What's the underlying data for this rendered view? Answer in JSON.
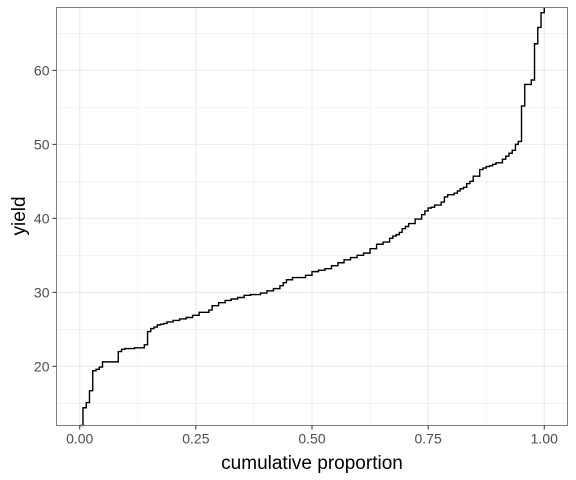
{
  "chart_data": {
    "type": "line",
    "subtype": "empirical-cdf-step",
    "title": "",
    "xlabel": "cumulative proportion",
    "ylabel": "yield",
    "xlim": [
      -0.05,
      1.05
    ],
    "ylim": [
      12,
      68.5
    ],
    "x_ticks": [
      0.0,
      0.25,
      0.5,
      0.75,
      1.0
    ],
    "x_tick_labels": [
      "0.00",
      "0.25",
      "0.50",
      "0.75",
      "1.00"
    ],
    "y_ticks": [
      20,
      30,
      40,
      50,
      60
    ],
    "y_tick_labels": [
      "20",
      "30",
      "40",
      "50",
      "60"
    ],
    "grid": true,
    "legend": "none",
    "colors": {
      "line": "#000000",
      "grid": "#ebebeb",
      "panel_border": "#7f7f7f"
    },
    "series": [
      {
        "x": [
          0.0,
          0.007,
          0.014,
          0.021,
          0.028,
          0.035,
          0.042,
          0.049,
          0.076,
          0.083,
          0.09,
          0.097,
          0.118,
          0.139,
          0.146,
          0.153,
          0.16,
          0.167,
          0.174,
          0.181,
          0.188,
          0.201,
          0.215,
          0.229,
          0.243,
          0.257,
          0.278,
          0.285,
          0.299,
          0.313,
          0.326,
          0.34,
          0.354,
          0.368,
          0.389,
          0.403,
          0.417,
          0.431,
          0.438,
          0.445,
          0.458,
          0.486,
          0.5,
          0.514,
          0.528,
          0.542,
          0.556,
          0.569,
          0.583,
          0.597,
          0.611,
          0.625,
          0.639,
          0.653,
          0.667,
          0.674,
          0.681,
          0.688,
          0.694,
          0.701,
          0.708,
          0.722,
          0.736,
          0.743,
          0.75,
          0.757,
          0.764,
          0.778,
          0.785,
          0.792,
          0.806,
          0.813,
          0.819,
          0.826,
          0.833,
          0.84,
          0.847,
          0.861,
          0.868,
          0.875,
          0.882,
          0.889,
          0.896,
          0.91,
          0.917,
          0.924,
          0.931,
          0.938,
          0.944,
          0.951,
          0.958,
          0.965,
          0.972,
          0.979,
          0.986,
          0.993,
          1.0
        ],
        "values": [
          12.0,
          14.4,
          15.1,
          16.7,
          19.4,
          19.6,
          19.9,
          20.6,
          20.6,
          22.0,
          22.3,
          22.4,
          22.5,
          22.9,
          24.7,
          25.1,
          25.3,
          25.6,
          25.7,
          25.8,
          26.0,
          26.2,
          26.4,
          26.6,
          26.9,
          27.3,
          27.6,
          28.2,
          28.6,
          28.9,
          29.1,
          29.3,
          29.6,
          29.7,
          29.9,
          30.2,
          30.5,
          30.9,
          31.3,
          31.7,
          32.0,
          32.3,
          32.8,
          33.0,
          33.2,
          33.6,
          34.0,
          34.4,
          34.7,
          35.0,
          35.3,
          35.9,
          36.5,
          36.8,
          37.3,
          37.6,
          37.8,
          38.1,
          38.6,
          38.9,
          39.3,
          39.9,
          40.5,
          41.0,
          41.4,
          41.5,
          41.8,
          42.2,
          42.9,
          43.2,
          43.4,
          43.7,
          44.0,
          44.2,
          44.7,
          45.0,
          45.7,
          46.6,
          46.8,
          47.0,
          47.1,
          47.3,
          47.5,
          48.0,
          48.4,
          48.8,
          49.2,
          50.0,
          50.4,
          55.2,
          58.1,
          58.1,
          58.7,
          63.6,
          65.8,
          67.8,
          68.5
        ]
      }
    ]
  }
}
